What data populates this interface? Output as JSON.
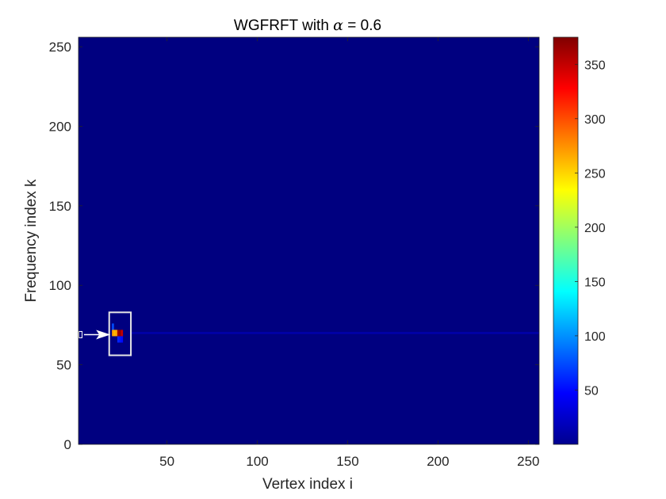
{
  "chart_data": {
    "type": "heatmap",
    "title_prefix": "WGFRFT with ",
    "title_symbol": "α",
    "title_suffix": " = 0.6",
    "xlabel": "Vertex index i",
    "ylabel": "Frequency index k",
    "xlim": [
      1,
      256
    ],
    "ylim": [
      0,
      256
    ],
    "xticks": [
      50,
      100,
      150,
      200,
      250
    ],
    "yticks": [
      0,
      50,
      100,
      150,
      200,
      250
    ],
    "colorbar": {
      "colormap": "jet",
      "clim": [
        0,
        375
      ],
      "ticks": [
        50,
        100,
        150,
        200,
        250,
        300,
        350
      ]
    },
    "background_value": 0,
    "nonzero_cells": [
      {
        "i": 20,
        "k": 74,
        "value": 75
      },
      {
        "i": 20,
        "k": 70,
        "value": 270
      },
      {
        "i": 21,
        "k": 70,
        "value": 260
      },
      {
        "i": 22,
        "k": 70,
        "value": 270
      },
      {
        "i": 23,
        "k": 70,
        "value": 365
      },
      {
        "i": 24,
        "k": 70,
        "value": 370
      },
      {
        "i": 25,
        "k": 70,
        "value": 350
      },
      {
        "i": 23,
        "k": 66,
        "value": 60
      },
      {
        "i": 24,
        "k": 66,
        "value": 55
      },
      {
        "i": 25,
        "k": 66,
        "value": 50
      }
    ],
    "ridge": {
      "k": 70,
      "i_start": 30,
      "i_end": 256,
      "value": 18
    },
    "annotation": {
      "box": {
        "i_min": 18,
        "i_max": 30,
        "k_min": 56,
        "k_max": 83
      },
      "marker": {
        "i": 1,
        "k": 69
      },
      "arrow": {
        "from_i": 4,
        "to_i": 16,
        "k": 69
      }
    }
  }
}
